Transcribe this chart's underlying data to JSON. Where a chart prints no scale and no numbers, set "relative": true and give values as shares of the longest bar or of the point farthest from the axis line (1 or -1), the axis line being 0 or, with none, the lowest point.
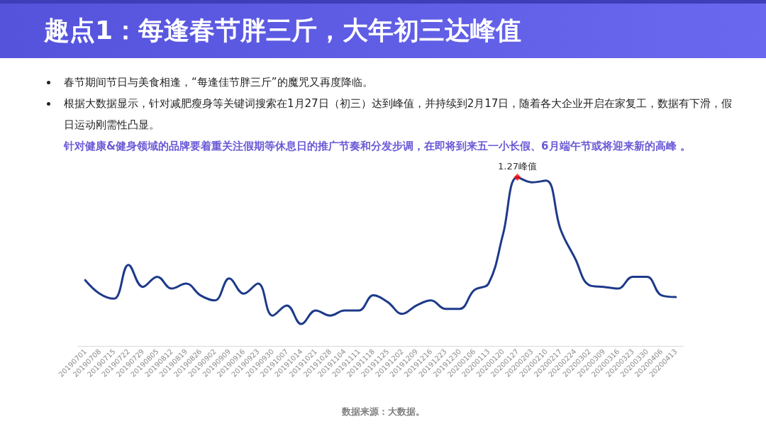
{
  "chart_data": {
    "type": "line",
    "title": "趣点1：每逢春节胖三斤，大年初三达峰值",
    "categories": [
      "20190701",
      "20190708",
      "20190715",
      "20190722",
      "20190729",
      "20190805",
      "20190812",
      "20190819",
      "20190826",
      "20190902",
      "20190909",
      "20190916",
      "20190923",
      "20190930",
      "20191007",
      "20191014",
      "20191021",
      "20191028",
      "20191104",
      "20191111",
      "20191118",
      "20191125",
      "20191202",
      "20191209",
      "20191216",
      "20191223",
      "20191230",
      "20200106",
      "20200113",
      "20200120",
      "20200127",
      "20200203",
      "20200210",
      "20200217",
      "20200224",
      "20200302",
      "20200309",
      "20200316",
      "20200323",
      "20200330",
      "20200406",
      "20200413"
    ],
    "relative": true,
    "grid": false,
    "series": [
      {
        "color": "#1e3a8a",
        "marker": "none",
        "values": [
          0.39,
          0.31,
          0.28,
          0.48,
          0.35,
          0.41,
          0.34,
          0.37,
          0.3,
          0.27,
          0.4,
          0.31,
          0.37,
          0.18,
          0.24,
          0.13,
          0.21,
          0.18,
          0.21,
          0.21,
          0.3,
          0.26,
          0.19,
          0.24,
          0.27,
          0.22,
          0.22,
          0.33,
          0.37,
          0.66,
          1,
          0.97,
          0.98,
          0.69,
          0.52,
          0.36,
          0.35,
          0.34,
          0.41,
          0.41,
          0.3,
          0.29
        ]
      },
      {
        "type": "scatter",
        "color": "#ff0000",
        "marker": "diamond",
        "x": [
          "20200127"
        ],
        "values": [
          1
        ]
      }
    ],
    "annotations": [
      "春节期间节日与美食相逢，“每逢佳节胖三斤”的魔咒又再度降临。",
      "根据大数据显示，针对减肥瘦身等关键词搜索在1月27日（初三）达到峰值，并持续到2月17日，随着各大企业开启在家复工，数据有下滑，假日运动刚需性凸显。",
      "针对健康&健身领域的品牌要着重关注假期等休息日的推广节奏和分发步调，在即将到来五一小长假、6月端午节或将迎来新的高峰 。",
      {
        "text": "1.27峰值",
        "x": "20200127",
        "y": 1
      },
      "数据来源：大数据。"
    ]
  }
}
